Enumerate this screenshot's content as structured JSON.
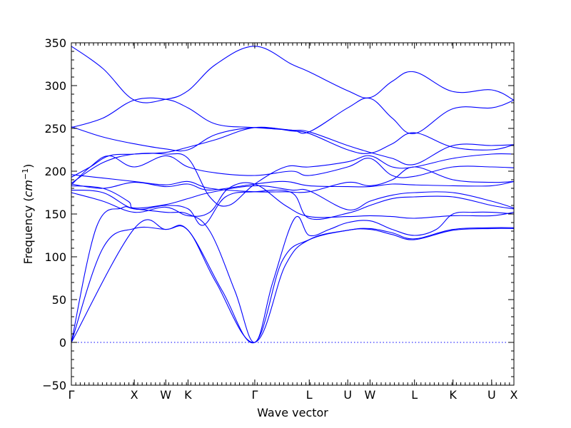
{
  "chart_data": {
    "type": "line",
    "ylabel": "Frequency ($cm^{-1}$)",
    "ylabel_text": "Frequency (",
    "ylabel_unit_base": "cm",
    "ylabel_unit_exp": "−1",
    "ylabel_close": ")",
    "xlabel": "Wave vector",
    "ylim": [
      -50,
      350
    ],
    "yticks": [
      -50,
      0,
      50,
      100,
      150,
      200,
      250,
      300,
      350
    ],
    "ytick_labels": [
      "−50",
      "0",
      "50",
      "100",
      "150",
      "200",
      "250",
      "300",
      "350"
    ],
    "grid": false,
    "zero_line": true,
    "kpoints": [
      {
        "label": "Γ",
        "x": 0.0
      },
      {
        "label": "X",
        "x": 1.0
      },
      {
        "label": "W",
        "x": 1.5
      },
      {
        "label": "K",
        "x": 1.854
      },
      {
        "label": "Γ",
        "x": 2.915
      },
      {
        "label": "L",
        "x": 3.781
      },
      {
        "label": "U",
        "x": 4.393
      },
      {
        "label": "W",
        "x": 4.747
      },
      {
        "label": "L",
        "x": 5.454
      },
      {
        "label": "K",
        "x": 6.066
      },
      {
        "label": "U",
        "x": 6.68
      },
      {
        "label": "X",
        "x": 7.034
      }
    ],
    "bands": [
      [
        [
          0,
          0
        ],
        [
          1,
          133
        ],
        [
          1.5,
          132
        ],
        [
          1.854,
          131
        ],
        [
          2.3,
          70
        ],
        [
          2.915,
          0
        ],
        [
          3.4,
          90
        ],
        [
          3.781,
          120
        ],
        [
          4.393,
          131
        ],
        [
          4.747,
          132
        ],
        [
          5.1,
          126
        ],
        [
          5.454,
          120
        ],
        [
          6.066,
          131
        ],
        [
          6.68,
          133
        ],
        [
          7.034,
          133
        ]
      ],
      [
        [
          0,
          0
        ],
        [
          0.5,
          110
        ],
        [
          1,
          133
        ],
        [
          1.5,
          132
        ],
        [
          1.854,
          131
        ],
        [
          2.4,
          60
        ],
        [
          2.915,
          0
        ],
        [
          3.35,
          95
        ],
        [
          3.781,
          120
        ],
        [
          4.393,
          131
        ],
        [
          4.747,
          133
        ],
        [
          5.1,
          128
        ],
        [
          5.454,
          121
        ],
        [
          6.066,
          132
        ],
        [
          6.68,
          134
        ],
        [
          7.034,
          134
        ]
      ],
      [
        [
          0,
          0
        ],
        [
          0.4,
          135
        ],
        [
          0.8,
          157
        ],
        [
          1,
          156
        ],
        [
          1.5,
          152
        ],
        [
          1.854,
          150
        ],
        [
          2.2,
          130
        ],
        [
          2.6,
          60
        ],
        [
          2.915,
          0
        ],
        [
          3.2,
          70
        ],
        [
          3.55,
          145
        ],
        [
          3.781,
          125
        ],
        [
          4.1,
          132
        ],
        [
          4.393,
          140
        ],
        [
          4.747,
          142
        ],
        [
          5.1,
          132
        ],
        [
          5.454,
          125
        ],
        [
          5.8,
          132
        ],
        [
          6.066,
          150
        ],
        [
          6.4,
          152
        ],
        [
          6.68,
          152
        ],
        [
          7.034,
          150
        ]
      ],
      [
        [
          0,
          175
        ],
        [
          0.5,
          165
        ],
        [
          1,
          152
        ],
        [
          1.5,
          158
        ],
        [
          1.854,
          148
        ],
        [
          2.2,
          152
        ],
        [
          2.5,
          180
        ],
        [
          2.915,
          185
        ],
        [
          3.4,
          160
        ],
        [
          3.781,
          147
        ],
        [
          4.393,
          147
        ],
        [
          4.747,
          148
        ],
        [
          5.1,
          147
        ],
        [
          5.454,
          145
        ],
        [
          6.066,
          148
        ],
        [
          6.68,
          148
        ],
        [
          7.034,
          152
        ]
      ],
      [
        [
          0,
          178
        ],
        [
          0.5,
          175
        ],
        [
          1,
          156
        ],
        [
          1.5,
          160
        ],
        [
          1.854,
          156
        ],
        [
          2.1,
          137
        ],
        [
          2.45,
          170
        ],
        [
          2.915,
          176
        ],
        [
          3.5,
          175
        ],
        [
          3.781,
          145
        ],
        [
          4.393,
          151
        ],
        [
          4.747,
          160
        ],
        [
          5.1,
          168
        ],
        [
          5.454,
          170
        ],
        [
          6.066,
          170
        ],
        [
          6.68,
          160
        ],
        [
          7.034,
          156
        ]
      ],
      [
        [
          0,
          183
        ],
        [
          0.5,
          180
        ],
        [
          0.9,
          165
        ],
        [
          1,
          157
        ],
        [
          1.5,
          161
        ],
        [
          1.854,
          168
        ],
        [
          2.2,
          175
        ],
        [
          2.915,
          183
        ],
        [
          3.5,
          178
        ],
        [
          3.781,
          177
        ],
        [
          4.393,
          155
        ],
        [
          4.747,
          165
        ],
        [
          5.1,
          172
        ],
        [
          5.454,
          175
        ],
        [
          6.066,
          175
        ],
        [
          6.68,
          165
        ],
        [
          7.034,
          157
        ]
      ],
      [
        [
          0,
          185
        ],
        [
          0.5,
          180
        ],
        [
          1,
          187
        ],
        [
          1.5,
          182
        ],
        [
          1.854,
          185
        ],
        [
          2.2,
          178
        ],
        [
          2.915,
          185
        ],
        [
          3.4,
          188
        ],
        [
          3.781,
          183
        ],
        [
          4.393,
          182
        ],
        [
          4.747,
          182
        ],
        [
          5.1,
          185
        ],
        [
          5.454,
          184
        ],
        [
          6.066,
          183
        ],
        [
          6.68,
          183
        ],
        [
          7.034,
          188
        ]
      ],
      [
        [
          0,
          196
        ],
        [
          0.5,
          192
        ],
        [
          1,
          188
        ],
        [
          1.5,
          184
        ],
        [
          1.854,
          188
        ],
        [
          2.2,
          180
        ],
        [
          2.915,
          176
        ],
        [
          3.4,
          176
        ],
        [
          3.781,
          176
        ],
        [
          4.393,
          187
        ],
        [
          4.747,
          183
        ],
        [
          5.1,
          190
        ],
        [
          5.454,
          205
        ],
        [
          6.066,
          190
        ],
        [
          6.68,
          187
        ],
        [
          7.034,
          188
        ]
      ],
      [
        [
          0,
          184
        ],
        [
          0.3,
          205
        ],
        [
          0.6,
          218
        ],
        [
          1,
          205
        ],
        [
          1.5,
          218
        ],
        [
          1.854,
          205
        ],
        [
          2.3,
          198
        ],
        [
          2.915,
          195
        ],
        [
          3.5,
          200
        ],
        [
          3.781,
          195
        ],
        [
          4.393,
          205
        ],
        [
          4.747,
          215
        ],
        [
          5.1,
          195
        ],
        [
          5.454,
          194
        ],
        [
          6.066,
          205
        ],
        [
          6.68,
          205
        ],
        [
          7.034,
          204
        ]
      ],
      [
        [
          0,
          186
        ],
        [
          0.5,
          210
        ],
        [
          1,
          220
        ],
        [
          1.5,
          220
        ],
        [
          1.854,
          215
        ],
        [
          2.2,
          170
        ],
        [
          2.5,
          160
        ],
        [
          2.915,
          185
        ],
        [
          3.4,
          205
        ],
        [
          3.781,
          205
        ],
        [
          4.393,
          211
        ],
        [
          4.747,
          218
        ],
        [
          5.1,
          205
        ],
        [
          5.454,
          205
        ],
        [
          6.066,
          215
        ],
        [
          6.68,
          220
        ],
        [
          7.034,
          220
        ]
      ],
      [
        [
          0,
          193
        ],
        [
          0.3,
          205
        ],
        [
          0.6,
          218
        ],
        [
          1,
          220
        ],
        [
          1.5,
          222
        ],
        [
          1.854,
          228
        ],
        [
          2.3,
          237
        ],
        [
          2.915,
          251
        ],
        [
          3.5,
          247
        ],
        [
          3.781,
          244
        ],
        [
          4.393,
          225
        ],
        [
          4.747,
          221
        ],
        [
          5.1,
          232
        ],
        [
          5.454,
          245
        ],
        [
          6.066,
          228
        ],
        [
          6.68,
          225
        ],
        [
          7.034,
          231
        ]
      ],
      [
        [
          0,
          252
        ],
        [
          0.5,
          240
        ],
        [
          1,
          232
        ],
        [
          1.5,
          226
        ],
        [
          1.854,
          225
        ],
        [
          2.3,
          243
        ],
        [
          2.915,
          251
        ],
        [
          3.5,
          248
        ],
        [
          3.781,
          246
        ],
        [
          4.393,
          230
        ],
        [
          4.747,
          222
        ],
        [
          5.1,
          215
        ],
        [
          5.454,
          208
        ],
        [
          6.066,
          230
        ],
        [
          6.68,
          230
        ],
        [
          7.034,
          231
        ]
      ],
      [
        [
          0,
          251
        ],
        [
          0.5,
          262
        ],
        [
          1,
          283
        ],
        [
          1.5,
          284
        ],
        [
          1.854,
          274
        ],
        [
          2.3,
          255
        ],
        [
          2.915,
          251
        ],
        [
          3.5,
          248
        ],
        [
          3.781,
          246
        ],
        [
          4.393,
          274
        ],
        [
          4.747,
          285
        ],
        [
          5.1,
          262
        ],
        [
          5.454,
          244
        ],
        [
          6.066,
          273
        ],
        [
          6.68,
          274
        ],
        [
          7.034,
          283
        ]
      ],
      [
        [
          0,
          346
        ],
        [
          0.5,
          320
        ],
        [
          1,
          283
        ],
        [
          1.5,
          284
        ],
        [
          1.854,
          294
        ],
        [
          2.3,
          325
        ],
        [
          2.915,
          346
        ],
        [
          3.5,
          325
        ],
        [
          3.781,
          316
        ],
        [
          4.393,
          294
        ],
        [
          4.747,
          286
        ],
        [
          5.1,
          305
        ],
        [
          5.454,
          316
        ],
        [
          6.066,
          293
        ],
        [
          6.68,
          295
        ],
        [
          7.034,
          283
        ]
      ]
    ]
  }
}
